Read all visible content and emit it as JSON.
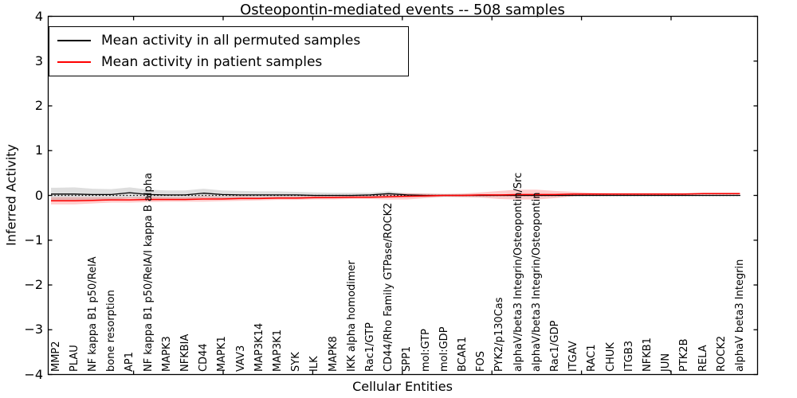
{
  "chart_data": {
    "type": "line",
    "title": "Osteopontin-mediated events -- 508 samples",
    "xlabel": "Cellular Entities",
    "ylabel": "Inferred Activity",
    "ylim": [
      -4,
      4
    ],
    "yticks": [
      {
        "v": 4,
        "label": "4"
      },
      {
        "v": 3,
        "label": "3"
      },
      {
        "v": 2,
        "label": "2"
      },
      {
        "v": 1,
        "label": "1"
      },
      {
        "v": 0,
        "label": "0"
      },
      {
        "v": -1,
        "label": "−1"
      },
      {
        "v": -2,
        "label": "−2"
      },
      {
        "v": -3,
        "label": "−3"
      },
      {
        "v": -4,
        "label": "−4"
      }
    ],
    "grid": false,
    "legend_position": "upper left",
    "zero_line": true,
    "categories": [
      "MMP2",
      "PLAU",
      "NF kappa B1 p50/RelA",
      "bone resorption",
      "AP1",
      "NF kappa B1 p50/RelA/I kappa B alpha",
      "MAPK3",
      "NFKBIA",
      "CD44",
      "MAPK1",
      "VAV3",
      "MAP3K14",
      "MAP3K1",
      "SYK",
      "ILK",
      "MAPK8",
      "IKK alpha homodimer",
      "Rac1/GTP",
      "CD44/Rho Family GTPase/ROCK2",
      "SPP1",
      "mol:GTP",
      "mol:GDP",
      "BCAR1",
      "FOS",
      "PYK2/p130Cas",
      "alphaV/beta3 Integrin/Osteopontin/Src",
      "alphaV/beta3 Integrin/Osteopontin",
      "Rac1/GDP",
      "ITGAV",
      "RAC1",
      "CHUK",
      "ITGB3",
      "NFKB1",
      "JUN",
      "PTK2B",
      "RELA",
      "ROCK2",
      "alphaV beta3 Integrin"
    ],
    "series": [
      {
        "name": "Mean activity in all permuted samples",
        "color": "#000000",
        "band_color": "#999999",
        "mean": [
          0.03,
          0.03,
          0.02,
          0.02,
          0.06,
          0.02,
          0.01,
          0.01,
          0.05,
          0.02,
          0.01,
          0.01,
          0.01,
          0.01,
          0.0,
          0.0,
          0.0,
          0.01,
          0.04,
          0.01,
          0.0,
          0.0,
          0.0,
          0.0,
          0.0,
          0.0,
          0.0,
          0.0,
          0.0,
          0.0,
          0.0,
          0.0,
          0.0,
          0.0,
          0.0,
          0.0,
          0.0,
          0.0
        ],
        "half_width": [
          0.14,
          0.15,
          0.13,
          0.12,
          0.12,
          0.11,
          0.1,
          0.1,
          0.1,
          0.09,
          0.09,
          0.08,
          0.08,
          0.07,
          0.07,
          0.06,
          0.06,
          0.05,
          0.05,
          0.04,
          0.04,
          0.03,
          0.03,
          0.03,
          0.02,
          0.02,
          0.02,
          0.02,
          0.015,
          0.015,
          0.015,
          0.015,
          0.015,
          0.015,
          0.015,
          0.015,
          0.015,
          0.015
        ]
      },
      {
        "name": "Mean activity in patient samples",
        "color": "#ff0000",
        "band_color": "#ff0000",
        "mean": [
          -0.12,
          -0.12,
          -0.11,
          -0.1,
          -0.1,
          -0.09,
          -0.09,
          -0.09,
          -0.08,
          -0.08,
          -0.07,
          -0.07,
          -0.06,
          -0.06,
          -0.05,
          -0.05,
          -0.04,
          -0.04,
          -0.03,
          -0.02,
          -0.01,
          0.0,
          0.0,
          0.01,
          0.01,
          0.02,
          0.02,
          0.02,
          0.03,
          0.03,
          0.03,
          0.03,
          0.03,
          0.03,
          0.03,
          0.04,
          0.04,
          0.04
        ],
        "half_width": [
          0.08,
          0.08,
          0.07,
          0.06,
          0.06,
          0.06,
          0.05,
          0.05,
          0.06,
          0.05,
          0.05,
          0.04,
          0.04,
          0.04,
          0.04,
          0.04,
          0.04,
          0.04,
          0.06,
          0.07,
          0.05,
          0.03,
          0.04,
          0.06,
          0.09,
          0.11,
          0.11,
          0.08,
          0.05,
          0.03,
          0.02,
          0.02,
          0.02,
          0.02,
          0.02,
          0.02,
          0.02,
          0.02
        ]
      }
    ]
  }
}
